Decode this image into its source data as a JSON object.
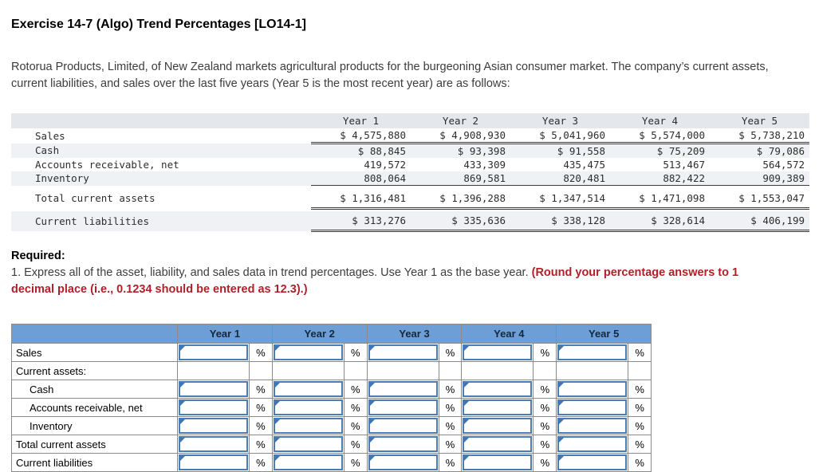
{
  "title": "Exercise 14-7 (Algo) Trend Percentages [LO14-1]",
  "intro": "Rotorua Products, Limited, of New Zealand markets agricultural products for the burgeoning Asian consumer market. The company’s current assets, current liabilities, and sales over the last five years (Year 5 is the most recent year) are as follows:",
  "data_table": {
    "columns": [
      "Year 1",
      "Year 2",
      "Year 3",
      "Year 4",
      "Year 5"
    ],
    "rows": [
      {
        "label": "Sales",
        "values": [
          "$ 4,575,880",
          "$ 4,908,930",
          "$ 5,041,960",
          "$ 5,574,000",
          "$ 5,738,210"
        ]
      },
      {
        "label": "Cash",
        "values": [
          "$ 88,845",
          "$ 93,398",
          "$ 91,558",
          "$ 75,209",
          "$ 79,086"
        ]
      },
      {
        "label": "Accounts receivable, net",
        "values": [
          "419,572",
          "433,309",
          "435,475",
          "513,467",
          "564,572"
        ]
      },
      {
        "label": "Inventory",
        "values": [
          "808,064",
          "869,581",
          "820,481",
          "882,422",
          "909,389"
        ]
      },
      {
        "label": "Total current assets",
        "values": [
          "$ 1,316,481",
          "$ 1,396,288",
          "$ 1,347,514",
          "$ 1,471,098",
          "$ 1,553,047"
        ]
      },
      {
        "label": "Current liabilities",
        "values": [
          "$ 313,276",
          "$ 335,636",
          "$ 338,128",
          "$ 328,614",
          "$ 406,199"
        ]
      }
    ]
  },
  "required": {
    "heading": "Required:",
    "item_text": "1. Express all of the asset, liability, and sales data in trend percentages. Use Year 1 as the base year. ",
    "item_emphasis": "(Round your percentage answers to 1 decimal place (i.e., 0.1234 should be entered as 12.3).)"
  },
  "answer_table": {
    "columns": [
      "Year 1",
      "Year 2",
      "Year 3",
      "Year 4",
      "Year 5"
    ],
    "rows": [
      {
        "label": "Sales",
        "indent": false,
        "has_inputs": true
      },
      {
        "label": "Current assets:",
        "indent": false,
        "has_inputs": false
      },
      {
        "label": "Cash",
        "indent": true,
        "has_inputs": true
      },
      {
        "label": "Accounts receivable, net",
        "indent": true,
        "has_inputs": true
      },
      {
        "label": "Inventory",
        "indent": true,
        "has_inputs": true
      },
      {
        "label": "Total current assets",
        "indent": false,
        "has_inputs": true
      },
      {
        "label": "Current liabilities",
        "indent": false,
        "has_inputs": true
      }
    ],
    "input_value": "",
    "percent_label": "%"
  },
  "colors": {
    "answer_header_bg": "#6d9ed6",
    "input_border": "#4a7cb5",
    "grid_border": "#8b8b8b",
    "stripe_bg": "#f0f1f4",
    "data_header_bg": "#e4e7ec",
    "emphasis_red": "#b0202a"
  }
}
